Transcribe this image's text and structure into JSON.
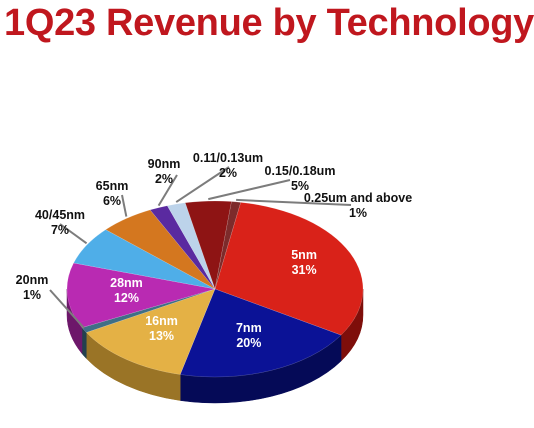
{
  "chart_data": {
    "type": "pie",
    "title": "1Q23 Revenue by Technology",
    "unit": "%",
    "slices": [
      {
        "label": "5nm",
        "value": 31,
        "color": "#d92219",
        "side": "#7e0e0a",
        "label_pos": "inside",
        "text_color": "#ffffff"
      },
      {
        "label": "7nm",
        "value": 20,
        "color": "#0b1296",
        "side": "#050a57",
        "label_pos": "inside",
        "text_color": "#ffffff"
      },
      {
        "label": "16nm",
        "value": 13,
        "color": "#e4b145",
        "side": "#9a7426",
        "label_pos": "inside",
        "text_color": "#ffffff"
      },
      {
        "label": "20nm",
        "value": 1,
        "color": "#3f6f86",
        "side": "#23404e",
        "label_pos": "outside",
        "text_color": "#111111"
      },
      {
        "label": "28nm",
        "value": 12,
        "color": "#b92ab2",
        "side": "#6d176a",
        "label_pos": "inside",
        "text_color": "#ffffff"
      },
      {
        "label": "40/45nm",
        "value": 7,
        "color": "#4faee8",
        "side": "#2b6c94",
        "label_pos": "outside",
        "text_color": "#111111"
      },
      {
        "label": "65nm",
        "value": 6,
        "color": "#d4771f",
        "side": "#844710",
        "label_pos": "outside",
        "text_color": "#111111"
      },
      {
        "label": "90nm",
        "value": 2,
        "color": "#5a2aa0",
        "side": "#331760",
        "label_pos": "outside",
        "text_color": "#111111"
      },
      {
        "label": "0.11/0.13um",
        "value": 2,
        "color": "#bcd3ea",
        "side": "#7890a8",
        "label_pos": "outside",
        "text_color": "#111111"
      },
      {
        "label": "0.15/0.18um",
        "value": 5,
        "color": "#8e1414",
        "side": "#4e0808",
        "label_pos": "outside",
        "text_color": "#111111"
      },
      {
        "label": "0.25um and above",
        "value": 1,
        "color": "#7d2b2b",
        "side": "#451616",
        "label_pos": "outside",
        "text_color": "#111111"
      }
    ]
  }
}
